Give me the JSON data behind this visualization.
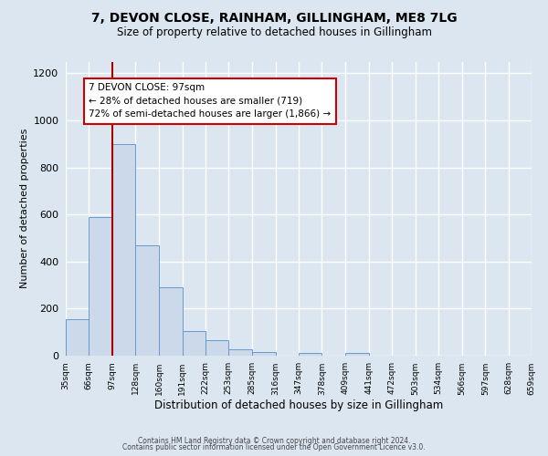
{
  "title": "7, DEVON CLOSE, RAINHAM, GILLINGHAM, ME8 7LG",
  "subtitle": "Size of property relative to detached houses in Gillingham",
  "xlabel": "Distribution of detached houses by size in Gillingham",
  "ylabel": "Number of detached properties",
  "bar_edges": [
    35,
    66,
    97,
    128,
    160,
    191,
    222,
    253,
    285,
    316,
    347,
    378,
    409,
    441,
    472,
    503,
    534,
    566,
    597,
    628,
    659
  ],
  "bar_heights": [
    155,
    590,
    900,
    470,
    290,
    105,
    65,
    28,
    15,
    0,
    12,
    0,
    10,
    0,
    0,
    0,
    0,
    0,
    0,
    0
  ],
  "bar_color": "#ccd9ea",
  "bar_edge_color": "#6699cc",
  "vline_x": 97,
  "vline_color": "#aa0000",
  "annotation_line1": "7 DEVON CLOSE: 97sqm",
  "annotation_line2": "← 28% of detached houses are smaller (719)",
  "annotation_line3": "72% of semi-detached houses are larger (1,866) →",
  "annotation_box_color": "#ffffff",
  "annotation_box_edgecolor": "#cc0000",
  "ylim": [
    0,
    1250
  ],
  "yticks": [
    0,
    200,
    400,
    600,
    800,
    1000,
    1200
  ],
  "tick_labels": [
    "35sqm",
    "66sqm",
    "97sqm",
    "128sqm",
    "160sqm",
    "191sqm",
    "222sqm",
    "253sqm",
    "285sqm",
    "316sqm",
    "347sqm",
    "378sqm",
    "409sqm",
    "441sqm",
    "472sqm",
    "503sqm",
    "534sqm",
    "566sqm",
    "597sqm",
    "628sqm",
    "659sqm"
  ],
  "background_color": "#dce6f0",
  "grid_color": "#ffffff",
  "footer_line1": "Contains HM Land Registry data © Crown copyright and database right 2024.",
  "footer_line2": "Contains public sector information licensed under the Open Government Licence v3.0."
}
